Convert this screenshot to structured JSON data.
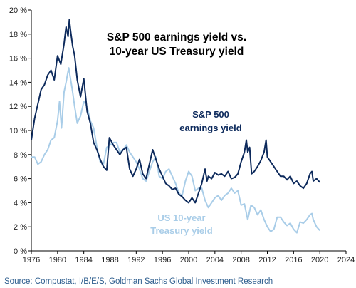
{
  "chart_data": {
    "type": "line",
    "title_lines": [
      "S&P 500 earnings yield vs.",
      "10-year US Treasury yield"
    ],
    "source": "Source: Compustat, I/B/E/S, Goldman Sachs Global Investment Research",
    "xlim": [
      1976,
      2024
    ],
    "ylim": [
      0,
      20
    ],
    "x_ticks": [
      1976,
      1980,
      1984,
      1988,
      1992,
      1996,
      2000,
      2004,
      2008,
      2012,
      2016,
      2020,
      2024
    ],
    "x_tick_labels": [
      "1976",
      "1980",
      "1984",
      "1988",
      "1992",
      "1996",
      "2000",
      "2004",
      "2008",
      "2012",
      "2016",
      "2020",
      "2024"
    ],
    "y_ticks": [
      0,
      2,
      4,
      6,
      8,
      10,
      12,
      14,
      16,
      18,
      20
    ],
    "y_tick_labels": [
      "0 %",
      "2 %",
      "4 %",
      "6 %",
      "8 %",
      "10 %",
      "12 %",
      "14 %",
      "16 %",
      "18 %",
      "20 %"
    ],
    "grid": false,
    "series": [
      {
        "name_lines": [
          "S&P 500",
          "earnings yield"
        ],
        "color": "#0d2a5c",
        "x": [
          1976.0,
          1976.5,
          1977.0,
          1977.5,
          1978.0,
          1978.5,
          1979.0,
          1979.5,
          1980.0,
          1980.5,
          1981.0,
          1981.3,
          1981.6,
          1981.8,
          1982.0,
          1982.3,
          1982.6,
          1983.0,
          1983.5,
          1984.0,
          1984.5,
          1985.0,
          1985.5,
          1986.0,
          1986.5,
          1987.0,
          1987.5,
          1987.9,
          1988.5,
          1989.0,
          1989.5,
          1990.0,
          1990.5,
          1991.0,
          1991.5,
          1992.0,
          1992.5,
          1993.0,
          1993.5,
          1994.0,
          1994.5,
          1995.0,
          1995.5,
          1996.0,
          1996.5,
          1997.0,
          1997.5,
          1998.0,
          1998.5,
          1999.0,
          1999.5,
          2000.0,
          2000.5,
          2001.0,
          2001.5,
          2002.0,
          2002.5,
          2002.8,
          2003.0,
          2003.5,
          2004.0,
          2004.5,
          2005.0,
          2005.5,
          2006.0,
          2006.5,
          2007.0,
          2007.5,
          2008.0,
          2008.5,
          2008.8,
          2009.0,
          2009.3,
          2009.6,
          2010.0,
          2010.5,
          2011.0,
          2011.5,
          2011.8,
          2012.0,
          2012.5,
          2013.0,
          2013.5,
          2014.0,
          2014.5,
          2015.0,
          2015.5,
          2016.0,
          2016.5,
          2017.0,
          2017.5,
          2018.0,
          2018.5,
          2018.8,
          2019.0,
          2019.5,
          2020.0
        ],
        "y": [
          9.2,
          11.0,
          12.2,
          13.4,
          13.8,
          14.6,
          15.0,
          14.2,
          16.2,
          15.5,
          17.2,
          18.6,
          17.8,
          19.2,
          18.2,
          17.0,
          16.2,
          14.2,
          12.8,
          14.3,
          11.6,
          10.6,
          9.0,
          8.4,
          7.6,
          7.0,
          6.7,
          9.4,
          8.8,
          8.4,
          8.0,
          8.4,
          8.6,
          6.8,
          6.2,
          6.8,
          7.6,
          6.4,
          6.0,
          7.2,
          8.4,
          7.6,
          6.8,
          6.2,
          5.6,
          5.4,
          5.1,
          5.2,
          4.7,
          4.5,
          4.2,
          4.0,
          4.4,
          4.0,
          4.8,
          5.6,
          6.8,
          5.8,
          6.2,
          6.0,
          6.5,
          6.3,
          6.4,
          6.2,
          6.6,
          6.0,
          6.1,
          6.4,
          7.4,
          8.2,
          9.2,
          8.2,
          8.6,
          6.4,
          6.6,
          7.0,
          7.5,
          8.2,
          9.2,
          7.8,
          7.4,
          7.0,
          6.6,
          6.2,
          6.2,
          5.9,
          6.2,
          5.6,
          5.8,
          5.4,
          5.2,
          5.6,
          6.4,
          6.6,
          5.8,
          6.0,
          5.7
        ]
      },
      {
        "name_lines": [
          "US 10-year",
          "Treasury yield"
        ],
        "color": "#a9cde8",
        "x": [
          1976.0,
          1976.5,
          1977.0,
          1977.5,
          1978.0,
          1978.5,
          1979.0,
          1979.5,
          1980.0,
          1980.3,
          1980.6,
          1981.0,
          1981.3,
          1981.7,
          1982.0,
          1982.3,
          1982.6,
          1983.0,
          1983.5,
          1984.0,
          1984.5,
          1985.0,
          1985.5,
          1986.0,
          1986.5,
          1987.0,
          1987.5,
          1988.0,
          1988.5,
          1989.0,
          1989.5,
          1990.0,
          1990.5,
          1991.0,
          1991.5,
          1992.0,
          1992.5,
          1993.0,
          1993.5,
          1994.0,
          1994.5,
          1995.0,
          1995.5,
          1996.0,
          1996.5,
          1997.0,
          1997.5,
          1998.0,
          1998.5,
          1999.0,
          1999.5,
          2000.0,
          2000.5,
          2001.0,
          2001.5,
          2002.0,
          2002.5,
          2003.0,
          2003.5,
          2004.0,
          2004.5,
          2005.0,
          2005.5,
          2006.0,
          2006.5,
          2007.0,
          2007.5,
          2008.0,
          2008.5,
          2009.0,
          2009.5,
          2010.0,
          2010.5,
          2011.0,
          2011.5,
          2012.0,
          2012.5,
          2013.0,
          2013.5,
          2014.0,
          2014.5,
          2015.0,
          2015.5,
          2016.0,
          2016.5,
          2017.0,
          2017.5,
          2018.0,
          2018.5,
          2018.8,
          2019.0,
          2019.5,
          2020.0
        ],
        "y": [
          7.8,
          7.8,
          7.2,
          7.4,
          8.0,
          8.4,
          9.2,
          9.4,
          10.8,
          12.4,
          10.2,
          13.2,
          14.0,
          15.2,
          14.2,
          13.2,
          12.0,
          10.6,
          11.2,
          12.4,
          12.0,
          10.8,
          10.2,
          8.6,
          7.4,
          7.2,
          8.6,
          8.8,
          9.0,
          9.0,
          8.2,
          8.4,
          8.8,
          8.2,
          7.8,
          7.4,
          6.8,
          6.0,
          5.8,
          6.6,
          7.4,
          7.8,
          6.2,
          6.0,
          6.6,
          6.8,
          6.2,
          5.6,
          4.8,
          4.6,
          5.8,
          6.6,
          6.2,
          5.0,
          5.2,
          5.2,
          4.2,
          3.6,
          4.0,
          4.4,
          4.6,
          4.2,
          4.6,
          4.8,
          5.2,
          4.8,
          5.0,
          3.8,
          3.9,
          2.6,
          3.8,
          3.6,
          3.0,
          3.4,
          2.6,
          2.0,
          1.6,
          1.8,
          2.8,
          2.8,
          2.4,
          2.1,
          2.3,
          1.8,
          1.5,
          2.4,
          2.3,
          2.6,
          3.0,
          3.1,
          2.6,
          2.0,
          1.7
        ]
      }
    ]
  }
}
